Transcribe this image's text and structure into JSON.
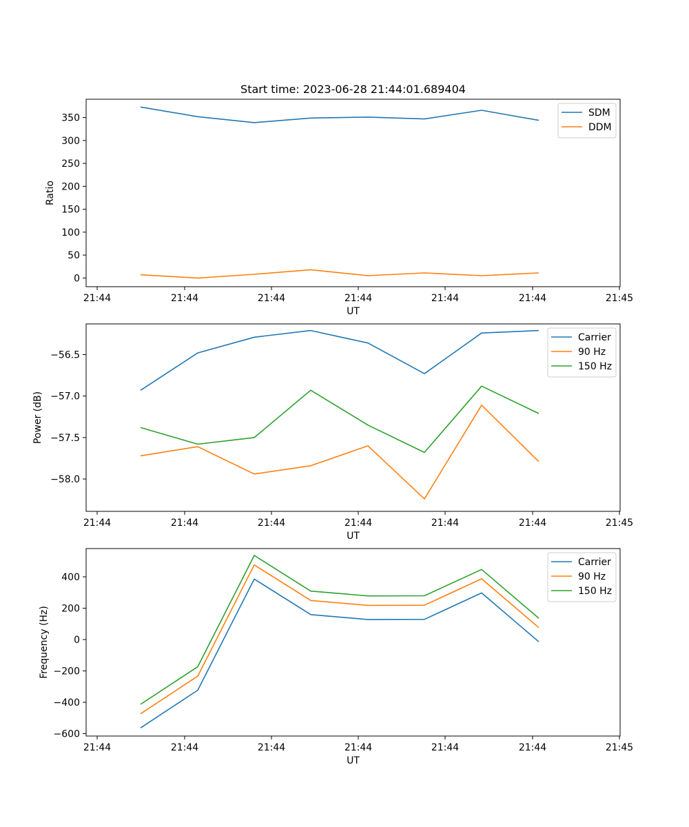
{
  "figure": {
    "title": "Start time: 2023-06-28 21:44:01.689404"
  },
  "colors": {
    "blue": "#1f77b4",
    "orange": "#ff7f0e",
    "green": "#2ca02c"
  },
  "chart_data": [
    {
      "type": "line",
      "title": "Start time: 2023-06-28 21:44:01.689404",
      "xlabel": "UT",
      "ylabel": "Ratio",
      "x_tick_labels": [
        "21:44",
        "21:44",
        "21:44",
        "21:44",
        "21:44",
        "21:44",
        "21:45"
      ],
      "y_ticks": [
        0,
        50,
        100,
        150,
        200,
        250,
        300,
        350
      ],
      "y_tick_labels": [
        "0",
        "50",
        "100",
        "150",
        "200",
        "250",
        "300",
        "350"
      ],
      "ylim": [
        -19,
        390
      ],
      "legend": "top-right",
      "series": [
        {
          "name": "SDM",
          "color": "#1f77b4",
          "values": [
            373,
            352,
            339,
            349,
            351,
            347,
            366,
            344
          ]
        },
        {
          "name": "DDM",
          "color": "#ff7f0e",
          "values": [
            7,
            0,
            8,
            18,
            5,
            11,
            5,
            11
          ]
        }
      ]
    },
    {
      "type": "line",
      "title": "",
      "xlabel": "UT",
      "ylabel": "Power (dB)",
      "x_tick_labels": [
        "21:44",
        "21:44",
        "21:44",
        "21:44",
        "21:44",
        "21:44",
        "21:45"
      ],
      "y_ticks": [
        -58.0,
        -57.5,
        -57.0,
        -56.5
      ],
      "y_tick_labels": [
        "−58.0",
        "−57.5",
        "−57.0",
        "−56.5"
      ],
      "ylim": [
        -58.39,
        -56.13
      ],
      "legend": "top-right",
      "series": [
        {
          "name": "Carrier",
          "color": "#1f77b4",
          "values": [
            -56.93,
            -56.48,
            -56.29,
            -56.21,
            -56.36,
            -56.73,
            -56.24,
            -56.21
          ]
        },
        {
          "name": "90 Hz",
          "color": "#ff7f0e",
          "values": [
            -57.72,
            -57.61,
            -57.94,
            -57.84,
            -57.6,
            -58.24,
            -57.11,
            -57.79
          ]
        },
        {
          "name": "150 Hz",
          "color": "#2ca02c",
          "values": [
            -57.38,
            -57.58,
            -57.5,
            -56.93,
            -57.35,
            -57.68,
            -56.88,
            -57.21
          ]
        }
      ]
    },
    {
      "type": "line",
      "title": "",
      "xlabel": "UT",
      "ylabel": "Frequency (Hz)",
      "x_tick_labels": [
        "21:44",
        "21:44",
        "21:44",
        "21:44",
        "21:44",
        "21:44",
        "21:45"
      ],
      "y_ticks": [
        -600,
        -400,
        -200,
        0,
        200,
        400
      ],
      "y_tick_labels": [
        "−600",
        "−400",
        "−200",
        "0",
        "200",
        "400"
      ],
      "ylim": [
        -615,
        580
      ],
      "legend": "top-right",
      "series": [
        {
          "name": "Carrier",
          "color": "#1f77b4",
          "values": [
            -563,
            -323,
            386,
            159,
            128,
            129,
            297,
            -14
          ]
        },
        {
          "name": "90 Hz",
          "color": "#ff7f0e",
          "values": [
            -473,
            -233,
            476,
            249,
            218,
            219,
            387,
            76
          ]
        },
        {
          "name": "150 Hz",
          "color": "#2ca02c",
          "values": [
            -413,
            -173,
            536,
            309,
            278,
            279,
            447,
            136
          ]
        }
      ]
    }
  ]
}
